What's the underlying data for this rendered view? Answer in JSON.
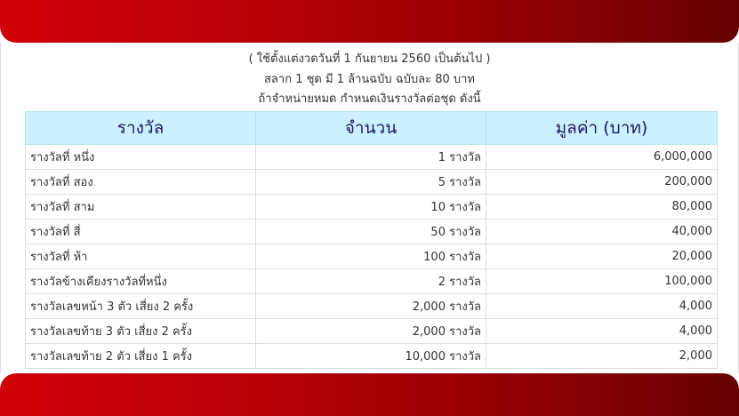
{
  "intro": {
    "line1": "( ใช้ตั้งแต่งวดวันที่ 1 กันยายน 2560 เป็นต้นไป )",
    "line2": "สลาก 1 ชุด มี 1 ล้านฉบับ ฉบับละ 80 บาท",
    "line3": "ถ้าจำหน่ายหมด กำหนดเงินรางวัลต่อชุด ดังนี้"
  },
  "table": {
    "headers": [
      "รางวัล",
      "จำนวน",
      "มูลค่า (บาท)"
    ],
    "rows": [
      {
        "name": "รางวัลที่ หนึ่ง",
        "count": "1 รางวัล",
        "value": "6,000,000"
      },
      {
        "name": "รางวัลที่ สอง",
        "count": "5 รางวัล",
        "value": "200,000"
      },
      {
        "name": "รางวัลที่ สาม",
        "count": "10 รางวัล",
        "value": "80,000"
      },
      {
        "name": "รางวัลที่ สี่",
        "count": "50 รางวัล",
        "value": "40,000"
      },
      {
        "name": "รางวัลที่ ห้า",
        "count": "100 รางวัล",
        "value": "20,000"
      },
      {
        "name": "รางวัลข้างเคียงรางวัลที่หนึ่ง",
        "count": "2 รางวัล",
        "value": "100,000"
      },
      {
        "name": "รางวัลเลขหน้า 3 ตัว เสี่ยง 2 ครั้ง",
        "count": "2,000 รางวัล",
        "value": "4,000"
      },
      {
        "name": "รางวัลเลขท้าย 3 ตัว เสี่ยง 2 ครั้ง",
        "count": "2,000 รางวัล",
        "value": "4,000"
      },
      {
        "name": "รางวัลเลขท้าย 2 ตัว เสี่ยง 1 ครั้ง",
        "count": "10,000 รางวัล",
        "value": "2,000"
      }
    ]
  },
  "colors": {
    "band_start": "#d10008",
    "band_end": "#650002",
    "header_bg": "#ccf0ff",
    "header_text": "#1a1a66"
  }
}
